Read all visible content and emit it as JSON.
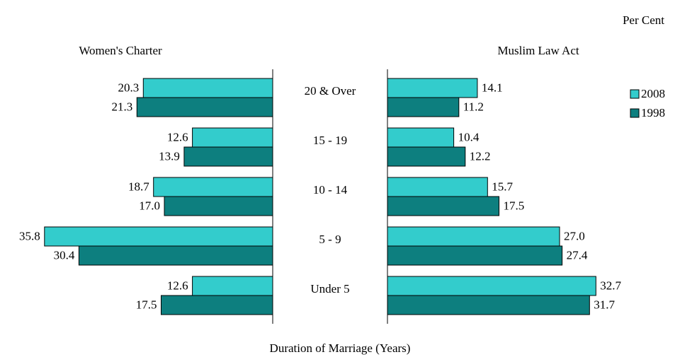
{
  "chart_data": {
    "type": "bar",
    "unit_label": "Per Cent",
    "xlabel": "Duration of Marriage (Years)",
    "categories": [
      "20 & Over",
      "15 - 19",
      "10 - 14",
      "5 - 9",
      "Under 5"
    ],
    "series": [
      {
        "name": "2008",
        "color": "#33cccc"
      },
      {
        "name": "1998",
        "color": "#0d7f7f"
      }
    ],
    "xlim": [
      0,
      36
    ],
    "panels": [
      {
        "title": "Women's Charter",
        "direction": "left",
        "values": [
          [
            20.3,
            12.6,
            18.7,
            35.8,
            12.6
          ],
          [
            21.3,
            13.9,
            17.0,
            30.4,
            17.5
          ]
        ],
        "value_labels": [
          [
            "20.3",
            "12.6",
            "18.7",
            "35.8",
            "12.6"
          ],
          [
            "21.3",
            "13.9",
            "17.0",
            "30.4",
            "17.5"
          ]
        ]
      },
      {
        "title": "Muslim Law Act",
        "direction": "right",
        "values": [
          [
            14.1,
            10.4,
            15.7,
            27.0,
            32.7
          ],
          [
            11.2,
            12.2,
            17.5,
            27.4,
            31.7
          ]
        ],
        "value_labels": [
          [
            "14.1",
            "10.4",
            "15.7",
            "27.0",
            "32.7"
          ],
          [
            "11.2",
            "12.2",
            "17.5",
            "27.4",
            "31.7"
          ]
        ]
      }
    ]
  }
}
